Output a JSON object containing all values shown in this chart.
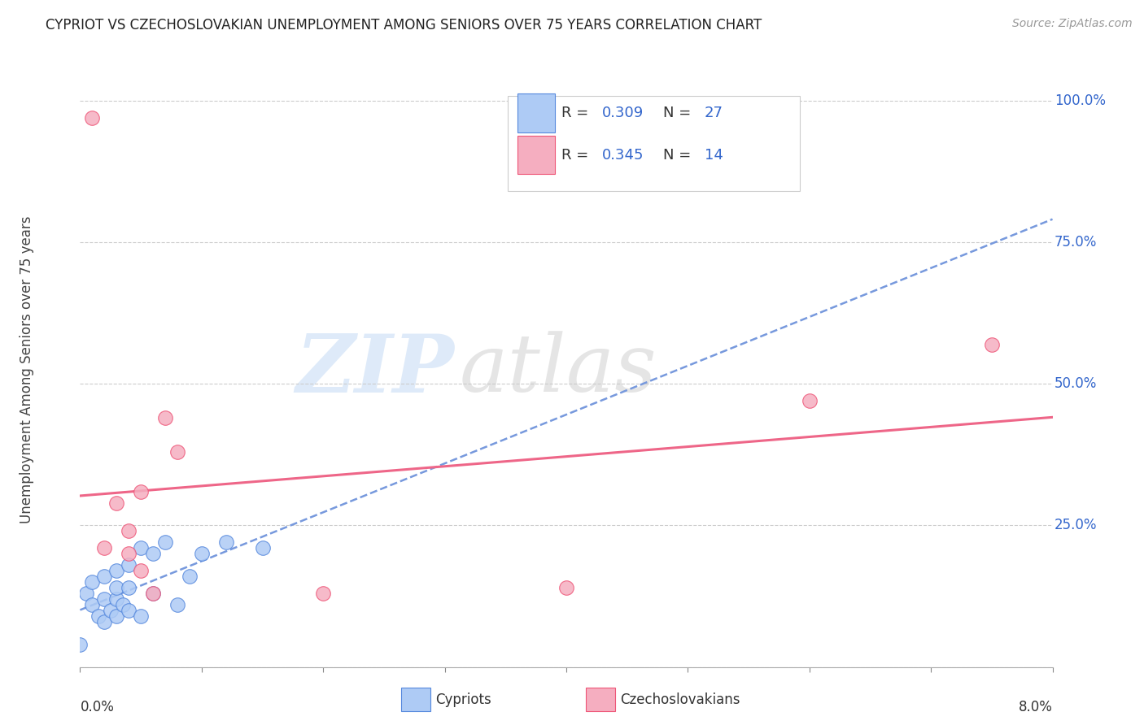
{
  "title": "CYPRIOT VS CZECHOSLOVAKIAN UNEMPLOYMENT AMONG SENIORS OVER 75 YEARS CORRELATION CHART",
  "source": "Source: ZipAtlas.com",
  "ylabel": "Unemployment Among Seniors over 75 years",
  "xmin": 0.0,
  "xmax": 0.08,
  "ymin": 0.0,
  "ymax": 1.05,
  "cypriot_color": "#aecbf5",
  "czechoslovakian_color": "#f5aec0",
  "cypriot_edge_color": "#5588dd",
  "czechoslovakian_edge_color": "#ee5577",
  "cypriot_line_color": "#7799dd",
  "czechoslovakian_line_color": "#ee6688",
  "legend_r_color": "#3366cc",
  "legend_n_color": "#3366cc",
  "watermark_zip_color": "#c8ddf5",
  "watermark_atlas_color": "#c8c8c8",
  "cypriot_R": 0.309,
  "cypriot_N": 27,
  "czechoslovakian_R": 0.345,
  "czechoslovakian_N": 14,
  "cypriot_x": [
    0.0,
    0.0005,
    0.001,
    0.001,
    0.0015,
    0.002,
    0.002,
    0.002,
    0.0025,
    0.003,
    0.003,
    0.003,
    0.003,
    0.0035,
    0.004,
    0.004,
    0.004,
    0.005,
    0.005,
    0.006,
    0.006,
    0.007,
    0.008,
    0.009,
    0.01,
    0.012,
    0.015
  ],
  "cypriot_y": [
    0.04,
    0.13,
    0.11,
    0.15,
    0.09,
    0.08,
    0.12,
    0.16,
    0.1,
    0.09,
    0.12,
    0.14,
    0.17,
    0.11,
    0.1,
    0.14,
    0.18,
    0.09,
    0.21,
    0.13,
    0.2,
    0.22,
    0.11,
    0.16,
    0.2,
    0.22,
    0.21
  ],
  "czechoslovakian_x": [
    0.001,
    0.002,
    0.003,
    0.004,
    0.004,
    0.005,
    0.005,
    0.006,
    0.007,
    0.008,
    0.02,
    0.04,
    0.06,
    0.075
  ],
  "czechoslovakian_y": [
    0.97,
    0.21,
    0.29,
    0.2,
    0.24,
    0.17,
    0.31,
    0.13,
    0.44,
    0.38,
    0.13,
    0.14,
    0.47,
    0.57
  ]
}
